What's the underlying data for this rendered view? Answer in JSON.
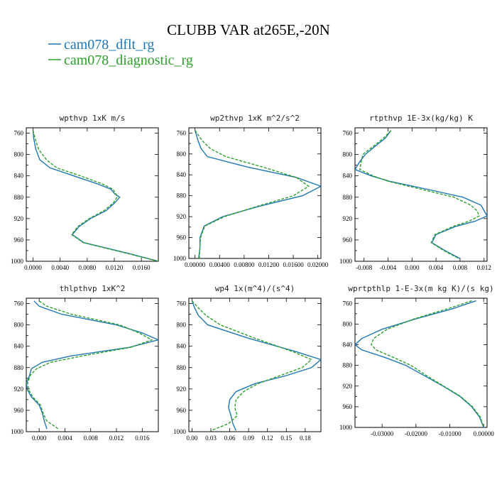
{
  "figure": {
    "title": "CLUBB VAR at265E,-20N",
    "legend": [
      {
        "name": "cam078_dflt_rg",
        "color": "#1f77b4",
        "dash": "solid"
      },
      {
        "name": "cam078_diagnostic_rg",
        "color": "#2ca02c",
        "dash": "dashed"
      }
    ]
  },
  "chart_data": [
    {
      "type": "line",
      "title": "wpthvp  1xK m/s",
      "xlim": [
        -0.001,
        0.0185
      ],
      "ylim": [
        1000,
        750
      ],
      "xticks": [
        0,
        0.004,
        0.008,
        0.012,
        0.016
      ],
      "xtick_labels": [
        "0.0000",
        "0.0040",
        "0.0080",
        "0.0120",
        "0.0160"
      ],
      "yticks": [
        760,
        800,
        840,
        880,
        920,
        960,
        1000
      ],
      "series": [
        {
          "y": [
            755,
            770,
            790,
            810,
            825,
            840,
            855,
            865,
            873,
            880,
            890,
            905,
            920,
            935,
            950,
            965,
            985,
            1000
          ],
          "values": [
            0.0,
            0.0001,
            0.0004,
            0.001,
            0.0025,
            0.006,
            0.0095,
            0.0115,
            0.012,
            0.0128,
            0.0121,
            0.0108,
            0.0085,
            0.0068,
            0.0058,
            0.0075,
            0.014,
            0.0185
          ]
        },
        {
          "y": [
            755,
            770,
            790,
            810,
            825,
            840,
            855,
            865,
            873,
            880,
            890,
            905,
            920,
            935,
            950,
            965,
            985,
            1000
          ],
          "values": [
            0.0,
            0.0003,
            0.0008,
            0.002,
            0.0035,
            0.007,
            0.0102,
            0.0118,
            0.0122,
            0.0124,
            0.0119,
            0.0105,
            0.0083,
            0.0066,
            0.0057,
            0.0074,
            0.0138,
            0.0185
          ]
        }
      ]
    },
    {
      "type": "line",
      "title": "wp2thvp  1xK m^2/s^2",
      "xlim": [
        -0.001,
        0.0205
      ],
      "ylim": [
        1000,
        750
      ],
      "xticks": [
        0,
        0.004,
        0.008,
        0.012,
        0.016,
        0.02
      ],
      "xtick_labels": [
        "0.00000",
        "0.00400",
        "0.00800",
        "0.01200",
        "0.01600",
        "0.02000"
      ],
      "yticks": [
        760,
        800,
        840,
        880,
        920,
        960,
        1000
      ],
      "series": [
        {
          "y": [
            755,
            775,
            790,
            805,
            825,
            845,
            862,
            880,
            900,
            920,
            938,
            960,
            980,
            1000
          ],
          "values": [
            0.0,
            0.0005,
            0.001,
            0.002,
            0.0085,
            0.0165,
            0.0205,
            0.0175,
            0.0105,
            0.0045,
            0.0015,
            0.0008,
            0.0008,
            0.0006
          ]
        },
        {
          "y": [
            755,
            775,
            790,
            805,
            825,
            845,
            862,
            880,
            900,
            920,
            938,
            960,
            980,
            1000
          ],
          "values": [
            0.0,
            0.0012,
            0.0025,
            0.005,
            0.011,
            0.0165,
            0.0185,
            0.016,
            0.0102,
            0.0048,
            0.0016,
            0.0009,
            0.0008,
            0.0007
          ]
        }
      ]
    },
    {
      "type": "line",
      "title": "rtpthvp  1E-3x(kg/kg) K",
      "xlim": [
        -0.0095,
        0.0125
      ],
      "ylim": [
        1000,
        750
      ],
      "xticks": [
        -0.008,
        -0.004,
        0,
        0.004,
        0.008,
        0.012
      ],
      "xtick_labels": [
        "-0.008",
        "-0.004",
        "0.000",
        "0.004",
        "0.008",
        "0.012"
      ],
      "yticks": [
        760,
        800,
        840,
        880,
        920,
        960,
        1000
      ],
      "series": [
        {
          "y": [
            755,
            770,
            785,
            800,
            815,
            828,
            840,
            850,
            865,
            880,
            895,
            905,
            915,
            925,
            935,
            950,
            965,
            980,
            995
          ],
          "values": [
            -0.0035,
            -0.0045,
            -0.0062,
            -0.0078,
            -0.0088,
            -0.0095,
            -0.0068,
            -0.0038,
            0.0025,
            0.0085,
            0.0115,
            0.012,
            0.0125,
            0.0105,
            0.0072,
            0.004,
            0.0033,
            0.0055,
            0.008
          ]
        },
        {
          "y": [
            755,
            770,
            785,
            800,
            815,
            828,
            840,
            850,
            865,
            880,
            895,
            905,
            915,
            925,
            935,
            950,
            965,
            980,
            995
          ],
          "values": [
            -0.0035,
            -0.0048,
            -0.0065,
            -0.0082,
            -0.0085,
            -0.0087,
            -0.0065,
            -0.004,
            0.0015,
            0.007,
            0.0098,
            0.0108,
            0.0112,
            0.0095,
            0.0068,
            0.0038,
            0.0032,
            0.0053,
            0.0078
          ]
        }
      ]
    },
    {
      "type": "line",
      "title": "thlpthvp  1xK^2",
      "xlim": [
        -0.002,
        0.0185
      ],
      "ylim": [
        1000,
        750
      ],
      "xticks": [
        0,
        0.004,
        0.008,
        0.012,
        0.016
      ],
      "xtick_labels": [
        "0.000",
        "0.004",
        "0.008",
        "0.012",
        "0.016"
      ],
      "yticks": [
        760,
        800,
        840,
        880,
        920,
        960,
        1000
      ],
      "series": [
        {
          "y": [
            755,
            765,
            780,
            800,
            815,
            828,
            842,
            858,
            870,
            882,
            895,
            910,
            922,
            935,
            950,
            965,
            980,
            995
          ],
          "values": [
            -0.0008,
            0.0,
            0.0035,
            0.012,
            0.016,
            0.0185,
            0.014,
            0.005,
            0.0005,
            -0.0012,
            -0.0015,
            -0.002,
            -0.0018,
            -0.0012,
            0.0,
            0.0005,
            0.0008,
            0.0012
          ]
        },
        {
          "y": [
            755,
            765,
            780,
            800,
            815,
            828,
            842,
            858,
            870,
            882,
            895,
            910,
            922,
            935,
            950,
            965,
            980,
            995
          ],
          "values": [
            0.0,
            0.0012,
            0.005,
            0.0125,
            0.0155,
            0.0175,
            0.0142,
            0.0068,
            0.0018,
            -0.0004,
            -0.0014,
            -0.0018,
            -0.0016,
            -0.001,
            0.0002,
            0.0006,
            0.0012,
            0.003
          ]
        }
      ]
    },
    {
      "type": "line",
      "title": "wp4  1x(m^4)/(s^4)",
      "xlim": [
        -0.005,
        0.205
      ],
      "ylim": [
        1000,
        750
      ],
      "xticks": [
        0,
        0.03,
        0.06,
        0.09,
        0.12,
        0.15,
        0.18
      ],
      "xtick_labels": [
        "0.00",
        "0.03",
        "0.06",
        "0.09",
        "0.12",
        "0.15",
        "0.18"
      ],
      "yticks": [
        760,
        800,
        840,
        880,
        920,
        960,
        1000
      ],
      "series": [
        {
          "y": [
            755,
            768,
            782,
            800,
            825,
            850,
            865,
            880,
            895,
            910,
            925,
            940,
            955,
            970,
            985,
            998
          ],
          "values": [
            0.0,
            0.004,
            0.01,
            0.025,
            0.09,
            0.165,
            0.205,
            0.19,
            0.15,
            0.1,
            0.07,
            0.06,
            0.058,
            0.062,
            0.065,
            0.07
          ]
        },
        {
          "y": [
            755,
            768,
            782,
            800,
            825,
            850,
            865,
            880,
            895,
            910,
            925,
            940,
            955,
            970,
            985,
            998
          ],
          "values": [
            0.0,
            0.01,
            0.022,
            0.045,
            0.1,
            0.16,
            0.19,
            0.175,
            0.14,
            0.105,
            0.082,
            0.07,
            0.068,
            0.072,
            0.058,
            0.03
          ]
        }
      ]
    },
    {
      "type": "line",
      "title": "wprtpthlp  1-E-3x(m kg K)/(s kg)",
      "xlim": [
        -0.038,
        0.001
      ],
      "ylim": [
        1000,
        750
      ],
      "xticks": [
        -0.03,
        -0.02,
        -0.01,
        0
      ],
      "xtick_labels": [
        "-0.03000",
        "-0.02000",
        "-0.01000",
        "0.00000"
      ],
      "yticks": [
        760,
        800,
        840,
        880,
        920,
        960,
        1000
      ],
      "series": [
        {
          "y": [
            755,
            770,
            790,
            810,
            828,
            840,
            850,
            865,
            880,
            900,
            920,
            940,
            960,
            980,
            1000
          ],
          "values": [
            -0.0022,
            -0.009,
            -0.02,
            -0.03,
            -0.036,
            -0.038,
            -0.036,
            -0.029,
            -0.023,
            -0.0175,
            -0.012,
            -0.007,
            -0.0035,
            -0.0012,
            0.0
          ]
        },
        {
          "y": [
            755,
            770,
            790,
            810,
            828,
            840,
            850,
            865,
            880,
            900,
            920,
            940,
            960,
            980,
            1000
          ],
          "values": [
            -0.0035,
            -0.0105,
            -0.0205,
            -0.0285,
            -0.0325,
            -0.0332,
            -0.0318,
            -0.0265,
            -0.0215,
            -0.0168,
            -0.0118,
            -0.0068,
            -0.0033,
            -0.001,
            0.0
          ]
        }
      ]
    }
  ]
}
